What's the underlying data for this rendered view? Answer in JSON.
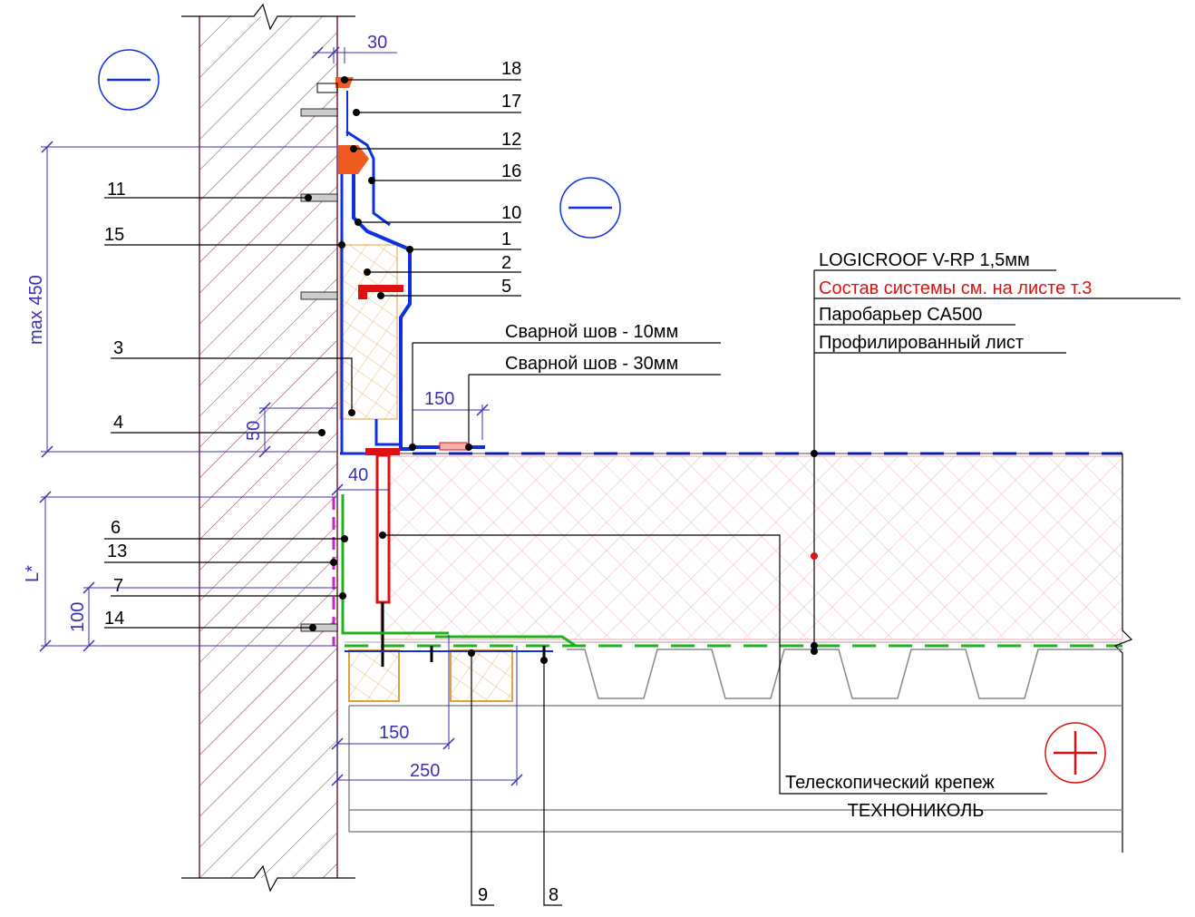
{
  "callouts": [
    "18",
    "17",
    "12",
    "16",
    "10",
    "1",
    "2",
    "5",
    "11",
    "15",
    "3",
    "4",
    "6",
    "13",
    "7",
    "14",
    "9",
    "8"
  ],
  "dimensions": [
    30,
    "max 450",
    50,
    150,
    40,
    "L*",
    100,
    150,
    250
  ],
  "welds": [
    "Сварной шов - 10мм",
    "Сварной шов - 30мм"
  ],
  "layers": [
    "LOGICROOF V-RP 1,5мм",
    "Состав системы см. на листе т.3",
    "Паробарьер CA500",
    "Профилированный лист"
  ],
  "fastener": [
    "Телескопический крепеж",
    "ТЕХНОНИКОЛЬ"
  ]
}
